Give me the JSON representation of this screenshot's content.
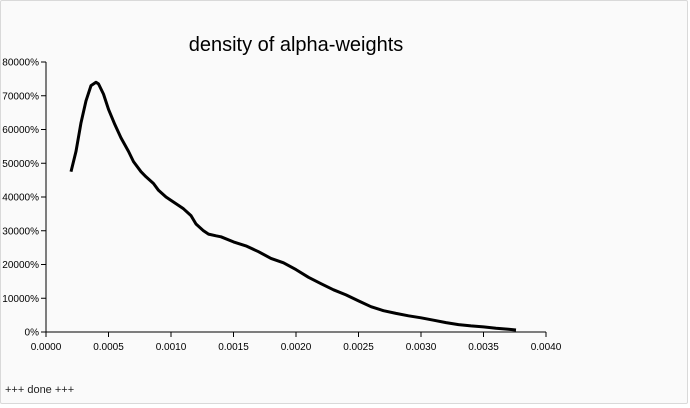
{
  "chart_data": {
    "type": "line",
    "title": "density of alpha-weights",
    "xlabel": "",
    "ylabel": "",
    "xlim": [
      0,
      0.004
    ],
    "ylim": [
      0,
      800000
    ],
    "x_ticks": [
      "0.0000",
      "0.0005",
      "0.0010",
      "0.0015",
      "0.0020",
      "0.0025",
      "0.0030",
      "0.0035",
      "0.0040"
    ],
    "y_ticks": [
      "0%",
      "10000%",
      "20000%",
      "30000%",
      "40000%",
      "50000%",
      "60000%",
      "70000%",
      "80000%"
    ],
    "x_tick_values": [
      0,
      0.0005,
      0.001,
      0.0015,
      0.002,
      0.0025,
      0.003,
      0.0035,
      0.004
    ],
    "y_tick_values": [
      0,
      100000,
      200000,
      300000,
      400000,
      500000,
      600000,
      700000,
      800000
    ],
    "grid": false,
    "series": [
      {
        "color": "#000000",
        "x": [
          0.0002,
          0.00024,
          0.00028,
          0.00032,
          0.00036,
          0.0004,
          0.00042,
          0.00046,
          0.0005,
          0.00055,
          0.0006,
          0.00066,
          0.0007,
          0.00076,
          0.0008,
          0.00086,
          0.0009,
          0.00096,
          0.001,
          0.00106,
          0.0011,
          0.00116,
          0.0012,
          0.00126,
          0.0013,
          0.00136,
          0.0014,
          0.0015,
          0.0016,
          0.0017,
          0.0018,
          0.0019,
          0.002,
          0.0021,
          0.0022,
          0.0023,
          0.0024,
          0.0025,
          0.0026,
          0.0027,
          0.0028,
          0.0029,
          0.003,
          0.0031,
          0.0032,
          0.0033,
          0.0034,
          0.0035,
          0.0036,
          0.0037,
          0.00376
        ],
        "y": [
          475000,
          535000,
          620000,
          685000,
          730000,
          740000,
          735000,
          705000,
          660000,
          615000,
          575000,
          535000,
          505000,
          475000,
          460000,
          440000,
          420000,
          400000,
          390000,
          375000,
          365000,
          345000,
          320000,
          300000,
          290000,
          285000,
          282000,
          267000,
          255000,
          238000,
          218000,
          205000,
          185000,
          162000,
          143000,
          125000,
          110000,
          92000,
          75000,
          63000,
          55000,
          48000,
          42000,
          35000,
          28000,
          22000,
          18000,
          15000,
          11000,
          8000,
          6000
        ]
      }
    ]
  },
  "status": {
    "text": "+++  done  +++"
  }
}
